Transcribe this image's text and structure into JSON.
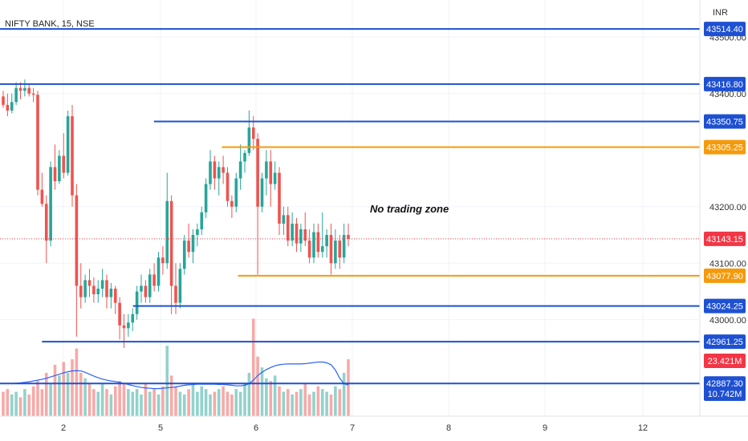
{
  "chart_data": {
    "type": "candlestick",
    "title": "NIFTY BANK, 15, NSE",
    "currency": "INR",
    "x_ticks": [
      "2",
      "5",
      "6",
      "7",
      "8",
      "9",
      "12"
    ],
    "y_ticks": [
      {
        "value": 43500,
        "label": "43500.00"
      },
      {
        "value": 43400,
        "label": "43400.00"
      },
      {
        "value": 43200,
        "label": "43200.00"
      },
      {
        "value": 43100,
        "label": "43100.00"
      },
      {
        "value": 43000,
        "label": "43000.00"
      }
    ],
    "ylim": [
      42933,
      43550
    ],
    "levels": [
      {
        "value": 43514.4,
        "label": "43514.40",
        "color": "#1E50D2",
        "start": 0
      },
      {
        "value": 43416.8,
        "label": "43416.80",
        "color": "#1E50D2",
        "start": 0
      },
      {
        "value": 43350.75,
        "label": "43350.75",
        "color": "#1E50D2",
        "start": 0.22
      },
      {
        "value": 43305.25,
        "label": "43305.25",
        "color": "#F59A0B",
        "start": 0.317
      },
      {
        "value": 43077.9,
        "label": "43077.90",
        "color": "#F59A0B",
        "start": 0.34
      },
      {
        "value": 43024.25,
        "label": "43024.25",
        "color": "#1E50D2",
        "start": 0.19
      },
      {
        "value": 42961.25,
        "label": "42961.25",
        "color": "#1E50D2",
        "start": 0.06
      },
      {
        "value": 42887.3,
        "label": "42887.30",
        "color": "#1E50D2",
        "start": 0
      }
    ],
    "current_price": {
      "value": 43143.15,
      "label": "43143.15",
      "color": "#F23645"
    },
    "volume_badges": [
      {
        "label": "23.421M",
        "color": "#F23645"
      },
      {
        "label": "10.742M",
        "color": "#1E50D2"
      }
    ],
    "annotation": "No trading zone",
    "colors": {
      "up": "#26A69A",
      "down": "#EF5350",
      "ma": "#2962FF"
    },
    "candles": [
      [
        43395,
        43405,
        43375,
        43380
      ],
      [
        43380,
        43400,
        43360,
        43370
      ],
      [
        43370,
        43400,
        43365,
        43385
      ],
      [
        43385,
        43420,
        43380,
        43410
      ],
      [
        43410,
        43420,
        43390,
        43405
      ],
      [
        43405,
        43425,
        43395,
        43410
      ],
      [
        43410,
        43418,
        43395,
        43400
      ],
      [
        43400,
        43410,
        43385,
        43398
      ],
      [
        43398,
        43405,
        43220,
        43230
      ],
      [
        43230,
        43260,
        43200,
        43205
      ],
      [
        43205,
        43220,
        43100,
        43140
      ],
      [
        43140,
        43280,
        43130,
        43270
      ],
      [
        43270,
        43310,
        43230,
        43245
      ],
      [
        43245,
        43300,
        43240,
        43290
      ],
      [
        43290,
        43330,
        43250,
        43260
      ],
      [
        43260,
        43370,
        43255,
        43360
      ],
      [
        43360,
        43380,
        43200,
        43220
      ],
      [
        43220,
        43240,
        42970,
        43060
      ],
      [
        43060,
        43100,
        43020,
        43040
      ],
      [
        43040,
        43080,
        43030,
        43070
      ],
      [
        43070,
        43090,
        43040,
        43060
      ],
      [
        43060,
        43075,
        43030,
        43045
      ],
      [
        43045,
        43070,
        43030,
        43055
      ],
      [
        43055,
        43090,
        43040,
        43070
      ],
      [
        43070,
        43080,
        43020,
        43040
      ],
      [
        43040,
        43065,
        43020,
        43055
      ],
      [
        43055,
        43060,
        43010,
        43030
      ],
      [
        43030,
        43040,
        42965,
        42990
      ],
      [
        42990,
        43010,
        42950,
        42985
      ],
      [
        42985,
        43010,
        42970,
        42995
      ],
      [
        42995,
        43020,
        42980,
        43010
      ],
      [
        43010,
        43060,
        43000,
        43050
      ],
      [
        43050,
        43080,
        43030,
        43060
      ],
      [
        43060,
        43070,
        43030,
        43040
      ],
      [
        43040,
        43090,
        43030,
        43080
      ],
      [
        43080,
        43100,
        43050,
        43060
      ],
      [
        43060,
        43120,
        43050,
        43110
      ],
      [
        43110,
        43130,
        43080,
        43100
      ],
      [
        43100,
        43260,
        43090,
        43210
      ],
      [
        43210,
        43220,
        43010,
        43060
      ],
      [
        43060,
        43100,
        43010,
        43030
      ],
      [
        43030,
        43100,
        43020,
        43090
      ],
      [
        43090,
        43150,
        43080,
        43140
      ],
      [
        43140,
        43170,
        43110,
        43120
      ],
      [
        43120,
        43160,
        43100,
        43150
      ],
      [
        43150,
        43170,
        43130,
        43160
      ],
      [
        43160,
        43200,
        43150,
        43190
      ],
      [
        43190,
        43250,
        43180,
        43240
      ],
      [
        43240,
        43300,
        43230,
        43280
      ],
      [
        43280,
        43290,
        43230,
        43250
      ],
      [
        43250,
        43280,
        43220,
        43270
      ],
      [
        43270,
        43290,
        43240,
        43260
      ],
      [
        43260,
        43270,
        43200,
        43210
      ],
      [
        43210,
        43220,
        43180,
        43200
      ],
      [
        43200,
        43260,
        43190,
        43250
      ],
      [
        43250,
        43310,
        43230,
        43280
      ],
      [
        43280,
        43300,
        43260,
        43295
      ],
      [
        43295,
        43370,
        43290,
        43340
      ],
      [
        43340,
        43360,
        43300,
        43320
      ],
      [
        43320,
        43330,
        43080,
        43200
      ],
      [
        43200,
        43260,
        43190,
        43250
      ],
      [
        43250,
        43300,
        43220,
        43280
      ],
      [
        43280,
        43300,
        43200,
        43240
      ],
      [
        43240,
        43280,
        43230,
        43260
      ],
      [
        43260,
        43270,
        43150,
        43170
      ],
      [
        43170,
        43200,
        43150,
        43185
      ],
      [
        43185,
        43200,
        43130,
        43140
      ],
      [
        43140,
        43190,
        43130,
        43170
      ],
      [
        43170,
        43180,
        43120,
        43135
      ],
      [
        43135,
        43170,
        43120,
        43160
      ],
      [
        43160,
        43190,
        43130,
        43140
      ],
      [
        43140,
        43160,
        43100,
        43110
      ],
      [
        43110,
        43170,
        43100,
        43155
      ],
      [
        43155,
        43170,
        43110,
        43120
      ],
      [
        43120,
        43190,
        43110,
        43130
      ],
      [
        43130,
        43160,
        43110,
        43150
      ],
      [
        43150,
        43170,
        43080,
        43100
      ],
      [
        43100,
        43160,
        43090,
        43140
      ],
      [
        43140,
        43150,
        43090,
        43110
      ],
      [
        43110,
        43170,
        43100,
        43150
      ],
      [
        43150,
        43170,
        43130,
        43143
      ]
    ],
    "volume": [
      0.9,
      1.0,
      0.8,
      0.9,
      0.7,
      1.0,
      0.8,
      1.1,
      1.3,
      1.0,
      1.6,
      1.2,
      1.9,
      1.5,
      2.0,
      1.6,
      2.1,
      2.5,
      1.6,
      1.4,
      1.2,
      1.0,
      0.9,
      1.2,
      1.0,
      0.8,
      1.1,
      1.3,
      1.2,
      1.0,
      0.9,
      1.0,
      0.8,
      1.2,
      0.9,
      1.0,
      0.8,
      1.1,
      2.6,
      1.5,
      1.1,
      0.9,
      0.8,
      1.0,
      1.2,
      0.9,
      1.1,
      1.0,
      0.8,
      0.9,
      1.0,
      1.1,
      0.9,
      0.8,
      1.0,
      0.9,
      1.2,
      1.6,
      3.6,
      2.2,
      1.8,
      1.4,
      1.3,
      1.5,
      1.1,
      0.9,
      1.0,
      0.8,
      0.9,
      1.0,
      1.2,
      0.8,
      0.9,
      1.1,
      1.0,
      0.9,
      0.8,
      1.1,
      1.0,
      1.6,
      2.1
    ],
    "ma": [
      1.2,
      1.21,
      1.2,
      1.22,
      1.23,
      1.25,
      1.27,
      1.3,
      1.33,
      1.36,
      1.4,
      1.45,
      1.5,
      1.55,
      1.6,
      1.64,
      1.67,
      1.68,
      1.67,
      1.62,
      1.55,
      1.48,
      1.42,
      1.37,
      1.33,
      1.3,
      1.28,
      1.25,
      1.21,
      1.17,
      1.13,
      1.09,
      1.06,
      1.04,
      1.03,
      1.02,
      1.02,
      1.03,
      1.05,
      1.06,
      1.08,
      1.11,
      1.14,
      1.16,
      1.17,
      1.18,
      1.18,
      1.18,
      1.18,
      1.18,
      1.17,
      1.17,
      1.16,
      1.14,
      1.12,
      1.12,
      1.14,
      1.2,
      1.33,
      1.5,
      1.62,
      1.72,
      1.8,
      1.86,
      1.9,
      1.92,
      1.93,
      1.93,
      1.93,
      1.93,
      1.94,
      1.96,
      1.98,
      2.0,
      2.0,
      1.97,
      1.9,
      1.7,
      1.4,
      1.2,
      1.15
    ],
    "volume_scale": 4.0
  }
}
